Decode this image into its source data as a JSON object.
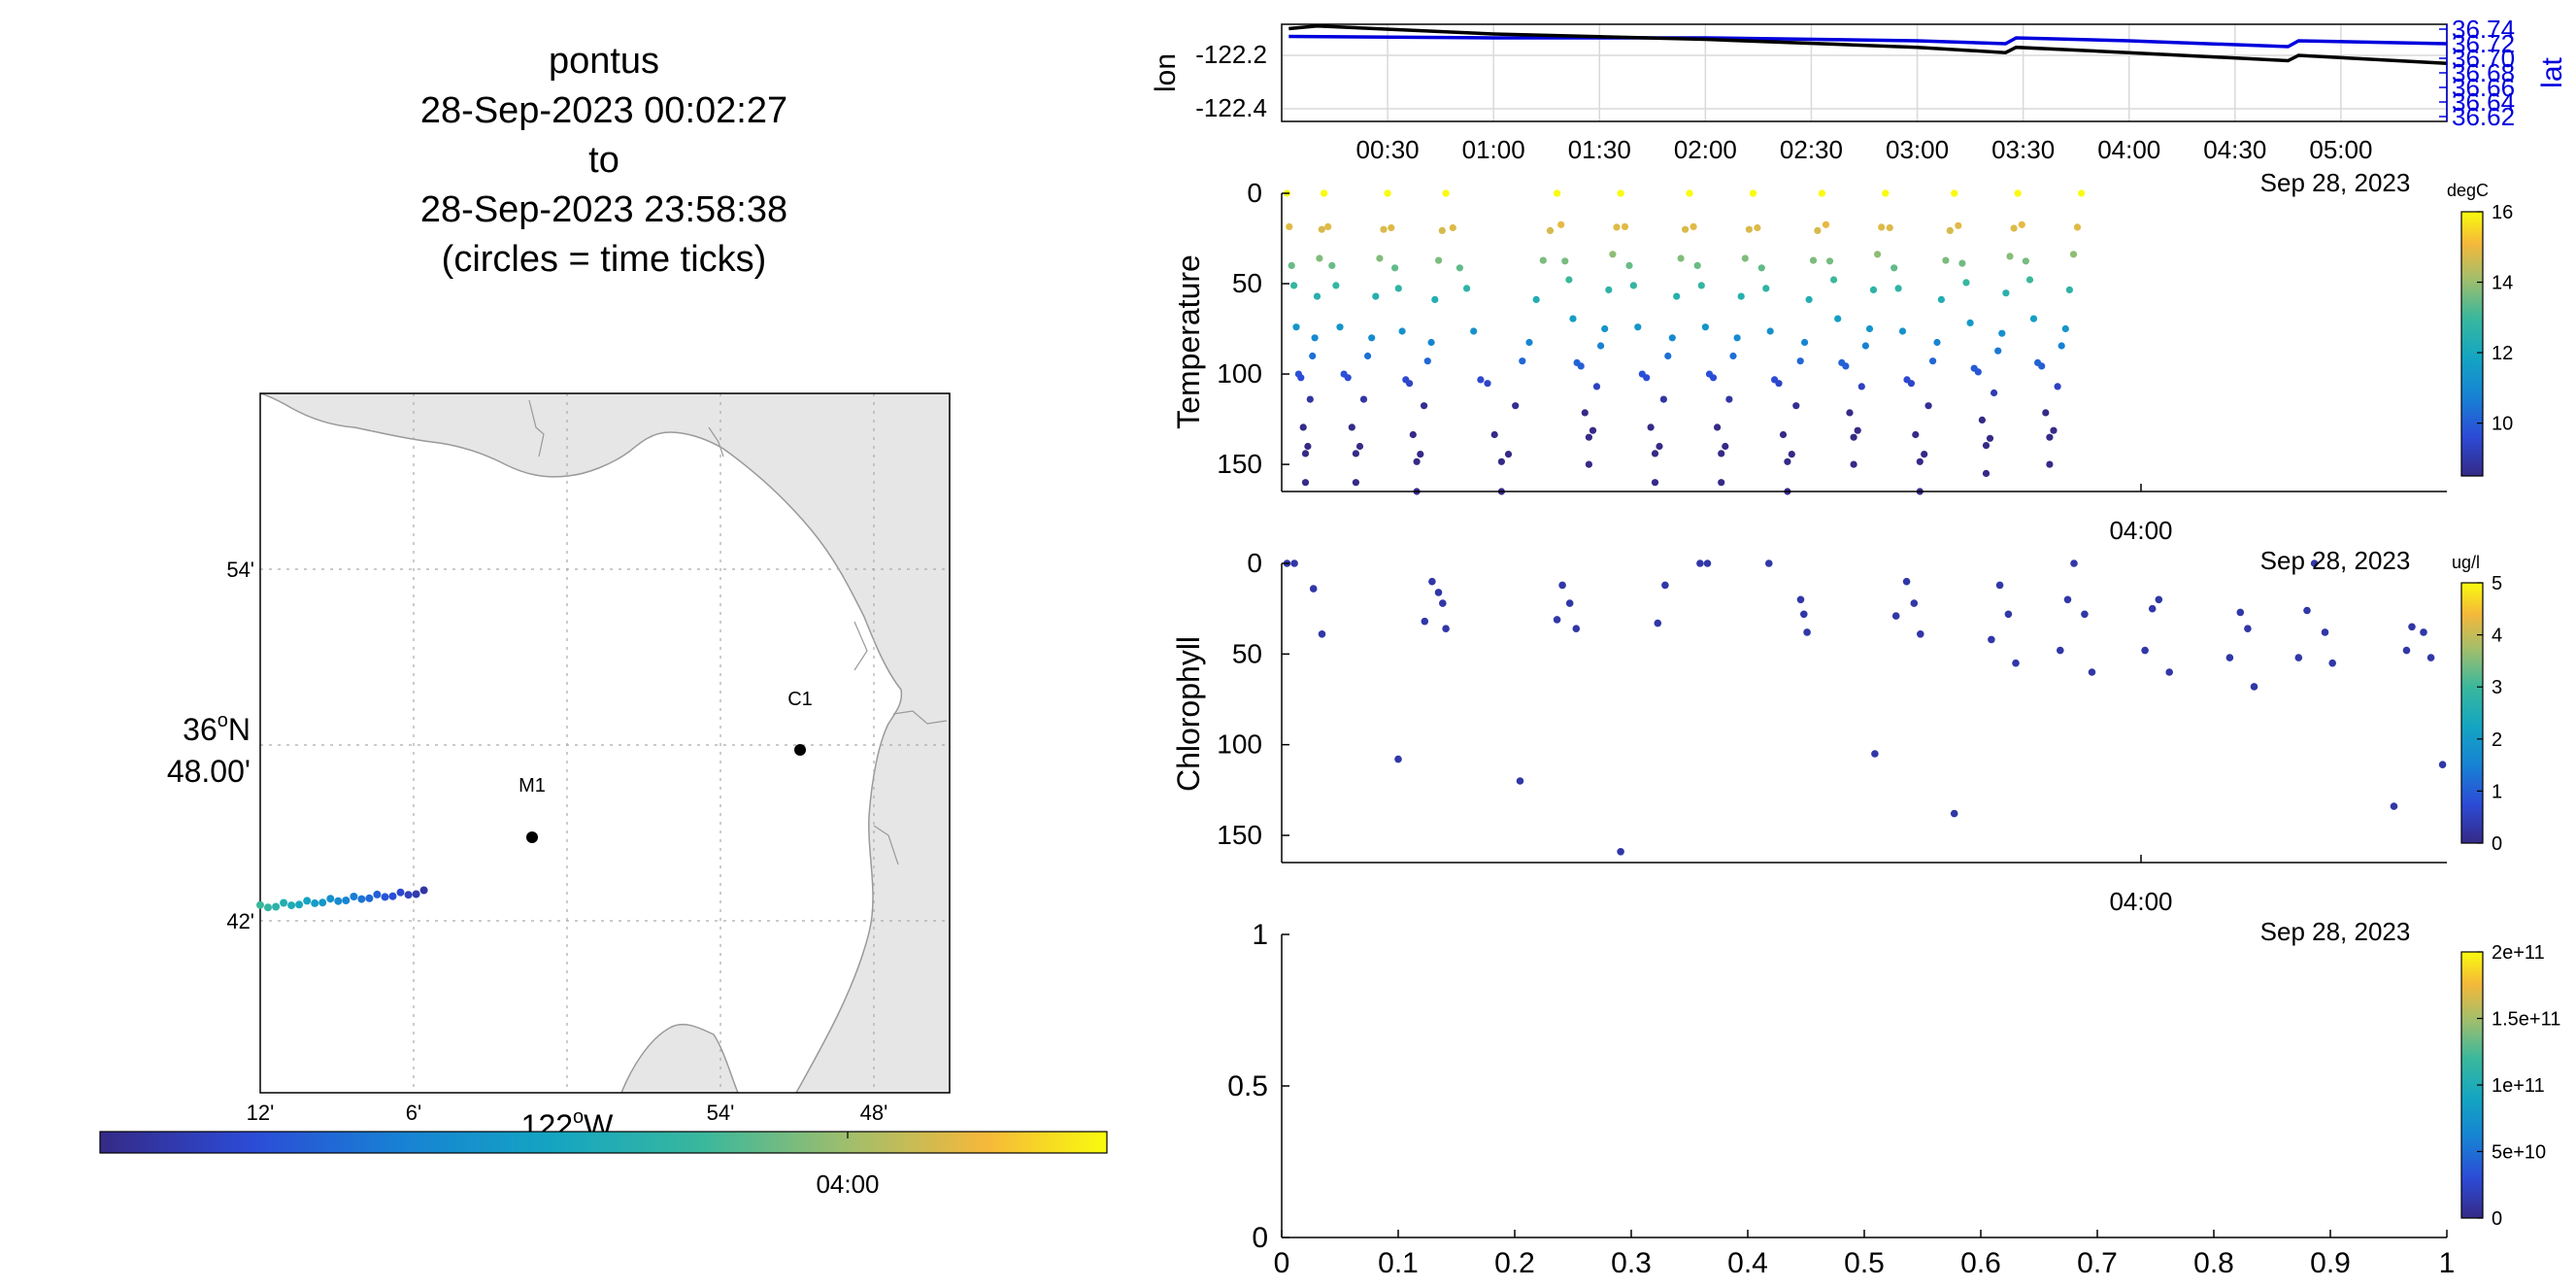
{
  "title": {
    "platform": "pontus",
    "start": "28-Sep-2023 00:02:27",
    "to": "to",
    "end": "28-Sep-2023 23:58:38",
    "note": "(circles = time ticks)"
  },
  "map": {
    "lat_labels": [
      "54'",
      "36°N 48.00'",
      "42'"
    ],
    "lat_main_deg": "36",
    "lat_main_suffix": "N",
    "lat_main_min": "48.00'",
    "lon_labels": [
      "12'",
      "6'",
      "54'",
      "48'"
    ],
    "lon_main_deg": "122",
    "lon_main_suffix": "W",
    "moorings": [
      {
        "name": "M1",
        "lon": -122.046,
        "lat": 36.747
      },
      {
        "name": "C1",
        "lon": -121.8847,
        "lat": 36.797
      }
    ],
    "colorbar_tick": "04:00",
    "colors": {
      "land": "#e6e6e6",
      "coast": "#9a9a9a"
    }
  },
  "chart_data": [
    {
      "type": "line",
      "title": "",
      "x_ticks": [
        "00:30",
        "01:00",
        "01:30",
        "02:00",
        "02:30",
        "03:00",
        "03:30",
        "04:00",
        "04:30",
        "05:00"
      ],
      "date_label": "Sep 28, 2023",
      "y_left": {
        "label": "lon",
        "ticks": [
          "-122.2",
          "-122.4"
        ],
        "color": "#000000"
      },
      "y_right": {
        "label": "lat",
        "ticks": [
          "36.74",
          "36.72",
          "36.70",
          "36.68",
          "36.66",
          "36.64",
          "36.62"
        ],
        "color": "#0000dd"
      },
      "series": [
        {
          "name": "lon",
          "x": [
            "00:02",
            "00:10",
            "01:00",
            "02:00",
            "03:00",
            "03:25",
            "03:28",
            "04:00",
            "04:45",
            "04:48",
            "05:30"
          ],
          "values": [
            -122.1,
            -122.09,
            -122.12,
            -122.14,
            -122.17,
            -122.19,
            -122.17,
            -122.19,
            -122.22,
            -122.2,
            -122.23
          ]
        },
        {
          "name": "lat",
          "x": [
            "00:02",
            "01:00",
            "02:00",
            "03:00",
            "03:25",
            "03:28",
            "04:00",
            "04:45",
            "04:48",
            "05:30"
          ],
          "values": [
            36.73,
            36.728,
            36.728,
            36.724,
            36.72,
            36.728,
            36.724,
            36.716,
            36.724,
            36.72
          ]
        }
      ]
    },
    {
      "type": "scatter",
      "ylabel": "Temperature",
      "y_ticks": [
        "0",
        "50",
        "100",
        "150"
      ],
      "ylim": [
        165,
        0
      ],
      "x_tick": "04:00",
      "date_label": "Sep 28, 2023",
      "colorbar": {
        "unit": "degC",
        "ticks": [
          "16",
          "14",
          "12",
          "10"
        ],
        "range": [
          8.5,
          16
        ]
      },
      "yo_profiles_start_hours": [
        0.05,
        0.4,
        1.0,
        1.55,
        2.6,
        3.2,
        3.85,
        4.45,
        5.1,
        5.7,
        6.35,
        6.95,
        7.55
      ],
      "yo_profile_max_depth_m": [
        0,
        160,
        160,
        165,
        165,
        150,
        160,
        160,
        165,
        150,
        165,
        155,
        150
      ]
    },
    {
      "type": "scatter",
      "ylabel": "Chlorophyll",
      "y_ticks": [
        "0",
        "50",
        "100",
        "150"
      ],
      "ylim": [
        165,
        0
      ],
      "x_tick": "04:00",
      "date_label": "Sep 28, 2023",
      "colorbar": {
        "unit": "ug/l",
        "ticks": [
          "5",
          "4",
          "3",
          "2",
          "1",
          "0"
        ],
        "range": [
          0,
          5
        ]
      },
      "points": [
        {
          "t": 0.05,
          "depth": 0,
          "value": 0.3
        },
        {
          "t": 0.12,
          "depth": 0,
          "value": 0.3
        },
        {
          "t": 0.3,
          "depth": 14,
          "value": 0.3
        },
        {
          "t": 0.38,
          "depth": 39,
          "value": 0.3
        },
        {
          "t": 1.1,
          "depth": 108,
          "value": 0.3
        },
        {
          "t": 1.35,
          "depth": 32,
          "value": 0.3
        },
        {
          "t": 1.42,
          "depth": 10,
          "value": 0.3
        },
        {
          "t": 1.48,
          "depth": 16,
          "value": 0.3
        },
        {
          "t": 1.52,
          "depth": 22,
          "value": 0.3
        },
        {
          "t": 1.55,
          "depth": 36,
          "value": 0.3
        },
        {
          "t": 2.25,
          "depth": 120,
          "value": 0.3
        },
        {
          "t": 2.6,
          "depth": 31,
          "value": 0.3
        },
        {
          "t": 2.65,
          "depth": 12,
          "value": 0.3
        },
        {
          "t": 2.72,
          "depth": 22,
          "value": 0.3
        },
        {
          "t": 2.78,
          "depth": 36,
          "value": 0.3
        },
        {
          "t": 3.2,
          "depth": 159,
          "value": 0.3
        },
        {
          "t": 3.55,
          "depth": 33,
          "value": 0.3
        },
        {
          "t": 3.62,
          "depth": 12,
          "value": 0.3
        },
        {
          "t": 3.95,
          "depth": 0,
          "value": 0.3
        },
        {
          "t": 4.02,
          "depth": 0,
          "value": 0.3
        },
        {
          "t": 4.6,
          "depth": 0,
          "value": 0.3
        },
        {
          "t": 4.9,
          "depth": 20,
          "value": 0.3
        },
        {
          "t": 4.93,
          "depth": 28,
          "value": 0.3
        },
        {
          "t": 4.96,
          "depth": 38,
          "value": 0.3
        },
        {
          "t": 5.6,
          "depth": 105,
          "value": 0.3
        },
        {
          "t": 5.8,
          "depth": 29,
          "value": 0.3
        },
        {
          "t": 5.9,
          "depth": 10,
          "value": 0.3
        },
        {
          "t": 5.97,
          "depth": 22,
          "value": 0.3
        },
        {
          "t": 6.03,
          "depth": 39,
          "value": 0.3
        },
        {
          "t": 6.35,
          "depth": 138,
          "value": 0.3
        },
        {
          "t": 6.7,
          "depth": 42,
          "value": 0.3
        },
        {
          "t": 6.78,
          "depth": 12,
          "value": 0.3
        },
        {
          "t": 6.86,
          "depth": 28,
          "value": 0.3
        },
        {
          "t": 6.93,
          "depth": 55,
          "value": 0.3
        },
        {
          "t": 7.35,
          "depth": 48,
          "value": 0.3
        },
        {
          "t": 7.42,
          "depth": 20,
          "value": 0.3
        },
        {
          "t": 7.48,
          "depth": 0,
          "value": 0.3
        },
        {
          "t": 7.58,
          "depth": 28,
          "value": 0.3
        },
        {
          "t": 7.65,
          "depth": 60,
          "value": 0.3
        },
        {
          "t": 8.15,
          "depth": 48,
          "value": 0.3
        },
        {
          "t": 8.22,
          "depth": 25,
          "value": 0.3
        },
        {
          "t": 8.28,
          "depth": 20,
          "value": 0.3
        },
        {
          "t": 8.38,
          "depth": 60,
          "value": 0.3
        },
        {
          "t": 8.95,
          "depth": 52,
          "value": 0.3
        },
        {
          "t": 9.05,
          "depth": 27,
          "value": 0.3
        },
        {
          "t": 9.12,
          "depth": 36,
          "value": 0.3
        },
        {
          "t": 9.18,
          "depth": 68,
          "value": 0.3
        },
        {
          "t": 9.6,
          "depth": 52,
          "value": 0.3
        },
        {
          "t": 9.68,
          "depth": 26,
          "value": 0.3
        },
        {
          "t": 9.75,
          "depth": 0,
          "value": 0.3
        },
        {
          "t": 9.85,
          "depth": 38,
          "value": 0.3
        },
        {
          "t": 9.92,
          "depth": 55,
          "value": 0.3
        },
        {
          "t": 10.5,
          "depth": 134,
          "value": 0.3
        },
        {
          "t": 10.62,
          "depth": 48,
          "value": 0.3
        },
        {
          "t": 10.67,
          "depth": 35,
          "value": 0.3
        },
        {
          "t": 10.78,
          "depth": 38,
          "value": 0.3
        },
        {
          "t": 10.85,
          "depth": 52,
          "value": 0.3
        },
        {
          "t": 10.96,
          "depth": 111,
          "value": 0.3
        }
      ]
    },
    {
      "type": "scatter",
      "title": "",
      "x_ticks": [
        "0",
        "0.1",
        "0.2",
        "0.3",
        "0.4",
        "0.5",
        "0.6",
        "0.7",
        "0.8",
        "0.9",
        "1"
      ],
      "y_ticks": [
        "0",
        "0.5",
        "1"
      ],
      "xlim": [
        0,
        1
      ],
      "ylim": [
        0,
        1
      ],
      "colorbar": {
        "ticks": [
          "2e+11",
          "1.5e+11",
          "1e+11",
          "5e+10",
          "0"
        ],
        "range": [
          0,
          200000000000.0
        ]
      },
      "points": []
    }
  ]
}
